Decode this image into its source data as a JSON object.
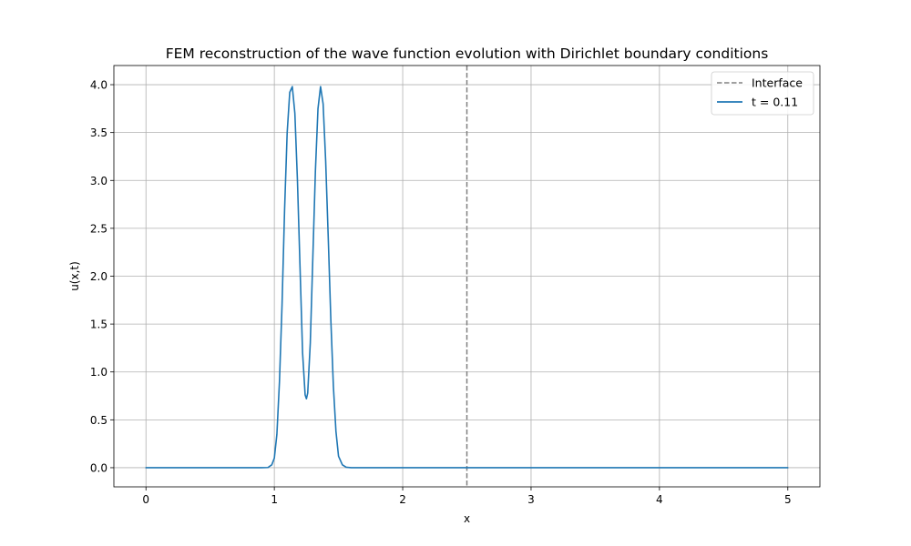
{
  "chart_data": {
    "type": "line",
    "title": "FEM reconstruction of the wave function evolution with Dirichlet boundary conditions",
    "xlabel": "x",
    "ylabel": "u(x,t)",
    "xlim": [
      -0.25,
      5.25
    ],
    "ylim": [
      -0.2,
      4.2
    ],
    "xticks": [
      0,
      1,
      2,
      3,
      4,
      5
    ],
    "yticks": [
      0.0,
      0.5,
      1.0,
      1.5,
      2.0,
      2.5,
      3.0,
      3.5,
      4.0
    ],
    "xtick_labels": [
      "0",
      "1",
      "2",
      "3",
      "4",
      "5"
    ],
    "ytick_labels": [
      "0.0",
      "0.5",
      "1.0",
      "1.5",
      "2.0",
      "2.5",
      "3.0",
      "3.5",
      "4.0"
    ],
    "grid": true,
    "legend_position": "top-right",
    "interface": {
      "name": "Interface",
      "x": 2.5,
      "color": "#808080",
      "style": "dashed"
    },
    "series": [
      {
        "name": "t = 0.11",
        "color": "#1f77b4",
        "x": [
          0,
          0.9,
          0.95,
          0.98,
          1.0,
          1.02,
          1.04,
          1.06,
          1.08,
          1.1,
          1.12,
          1.14,
          1.16,
          1.18,
          1.2,
          1.22,
          1.24,
          1.25,
          1.26,
          1.28,
          1.3,
          1.32,
          1.34,
          1.36,
          1.38,
          1.4,
          1.42,
          1.44,
          1.46,
          1.48,
          1.5,
          1.53,
          1.56,
          1.6,
          2.0,
          3.0,
          4.0,
          5.0
        ],
        "y": [
          0,
          0,
          0.002,
          0.03,
          0.1,
          0.35,
          0.9,
          1.7,
          2.7,
          3.5,
          3.92,
          3.98,
          3.7,
          3.0,
          2.1,
          1.2,
          0.76,
          0.72,
          0.78,
          1.3,
          2.2,
          3.1,
          3.75,
          3.98,
          3.8,
          3.2,
          2.4,
          1.55,
          0.85,
          0.38,
          0.12,
          0.03,
          0.005,
          0,
          0,
          0,
          0,
          0
        ]
      }
    ]
  }
}
